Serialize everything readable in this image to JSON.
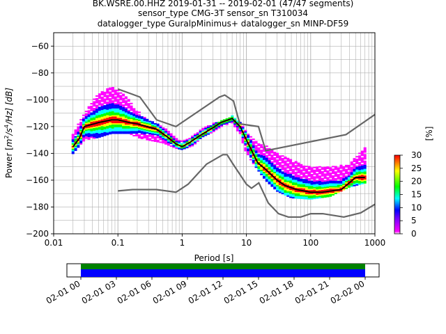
{
  "chart_data": {
    "type": "heatmap",
    "title_lines": [
      "BK.WSRE.00.HHZ   2019-01-31 -- 2019-02-01  (47/47 segments)",
      "sensor_type CMG-3T sensor_sn T310034",
      "datalogger_type GuralpMinimus+ datalogger_sn MINP-DF59"
    ],
    "xlabel": "Period [s]",
    "ylabel_parts": [
      "Power [",
      "m",
      "2",
      "/",
      "s",
      "4",
      "/Hz] [dB]"
    ],
    "x_scale": "log",
    "xlim": [
      0.01,
      1000
    ],
    "ylim": [
      -200,
      -50
    ],
    "x_ticks": [
      {
        "v": 0.01,
        "label": "0.01"
      },
      {
        "v": 0.1,
        "label": "0.1"
      },
      {
        "v": 1,
        "label": "1"
      },
      {
        "v": 10,
        "label": "10"
      },
      {
        "v": 100,
        "label": "100"
      },
      {
        "v": 1000,
        "label": "1000"
      }
    ],
    "y_ticks": [
      -60,
      -80,
      -100,
      -120,
      -140,
      -160,
      -180,
      -200
    ],
    "grid": true,
    "colorbar": {
      "label": "[%]",
      "min": 0,
      "max": 30,
      "ticks": [
        0,
        5,
        10,
        15,
        20,
        25,
        30
      ]
    },
    "noise_model_high": [
      [
        0.1,
        -92
      ],
      [
        0.17,
        -96
      ],
      [
        0.22,
        -98
      ],
      [
        0.4,
        -115
      ],
      [
        0.8,
        -120
      ],
      [
        3.8,
        -98
      ],
      [
        4.6,
        -96.5
      ],
      [
        6.3,
        -101
      ],
      [
        7.9,
        -118
      ],
      [
        15.4,
        -120
      ],
      [
        20,
        -138
      ],
      [
        354.8,
        -126
      ],
      [
        1000,
        -111
      ]
    ],
    "noise_model_low": [
      [
        0.1,
        -168
      ],
      [
        0.17,
        -167
      ],
      [
        0.4,
        -167
      ],
      [
        0.8,
        -169
      ],
      [
        1.24,
        -163
      ],
      [
        2.4,
        -148
      ],
      [
        4.3,
        -141
      ],
      [
        5,
        -141
      ],
      [
        6,
        -147
      ],
      [
        10,
        -163
      ],
      [
        12,
        -166
      ],
      [
        15.6,
        -162
      ],
      [
        21.9,
        -177
      ],
      [
        31.6,
        -185
      ],
      [
        45,
        -187.5
      ],
      [
        70,
        -187.5
      ],
      [
        100,
        -185
      ],
      [
        154,
        -185
      ],
      [
        328,
        -187.5
      ],
      [
        600,
        -184.4
      ],
      [
        1000,
        -178
      ]
    ],
    "mode_line": [
      [
        0.02,
        -135
      ],
      [
        0.025,
        -129
      ],
      [
        0.03,
        -120
      ],
      [
        0.05,
        -117
      ],
      [
        0.08,
        -115
      ],
      [
        0.1,
        -115
      ],
      [
        0.15,
        -117
      ],
      [
        0.2,
        -118
      ],
      [
        0.4,
        -122
      ],
      [
        0.6,
        -128
      ],
      [
        0.8,
        -133
      ],
      [
        1,
        -135
      ],
      [
        1.3,
        -132
      ],
      [
        2,
        -126
      ],
      [
        3,
        -121
      ],
      [
        4,
        -117
      ],
      [
        6,
        -114
      ],
      [
        8,
        -120
      ],
      [
        10,
        -130
      ],
      [
        15,
        -147
      ],
      [
        20,
        -152
      ],
      [
        30,
        -160
      ],
      [
        40,
        -164
      ],
      [
        60,
        -167
      ],
      [
        100,
        -169
      ],
      [
        150,
        -169
      ],
      [
        300,
        -167
      ],
      [
        500,
        -158
      ],
      [
        700,
        -158
      ]
    ],
    "psd_spread": [
      [
        0.02,
        -140,
        -125
      ],
      [
        0.03,
        -130,
        -110
      ],
      [
        0.05,
        -128,
        -95
      ],
      [
        0.08,
        -125,
        -90
      ],
      [
        0.1,
        -125,
        -92
      ],
      [
        0.15,
        -125,
        -100
      ],
      [
        0.2,
        -128,
        -108
      ],
      [
        0.3,
        -130,
        -115
      ],
      [
        0.5,
        -132,
        -120
      ],
      [
        0.8,
        -136,
        -128
      ],
      [
        1,
        -137,
        -131
      ],
      [
        1.5,
        -134,
        -126
      ],
      [
        2,
        -128,
        -122
      ],
      [
        3,
        -124,
        -117
      ],
      [
        4,
        -120,
        -116
      ],
      [
        6,
        -117,
        -112
      ],
      [
        8,
        -126,
        -117
      ],
      [
        10,
        -140,
        -124
      ],
      [
        15,
        -152,
        -132
      ],
      [
        20,
        -160,
        -134
      ],
      [
        30,
        -168,
        -140
      ],
      [
        50,
        -173,
        -145
      ],
      [
        100,
        -174,
        -150
      ],
      [
        200,
        -172,
        -150
      ],
      [
        400,
        -165,
        -148
      ],
      [
        700,
        -162,
        -135
      ]
    ],
    "time_axis": {
      "ticks": [
        "02-01 00",
        "02-01 03",
        "02-01 06",
        "02-01 09",
        "02-01 12",
        "02-01 15",
        "02-01 18",
        "02-01 21",
        "02-02 00"
      ],
      "coverage_colors": {
        "data": "#0000ff",
        "gaps": "#008000"
      }
    }
  },
  "colors": {
    "noise_model": "#666666",
    "mode_line": "#000000",
    "grid": "#b0b0b0",
    "colormap": [
      "#ffffff",
      "#ff00ff",
      "#0000ff",
      "#00ffff",
      "#00ff00",
      "#ffff00",
      "#ff0000"
    ]
  }
}
